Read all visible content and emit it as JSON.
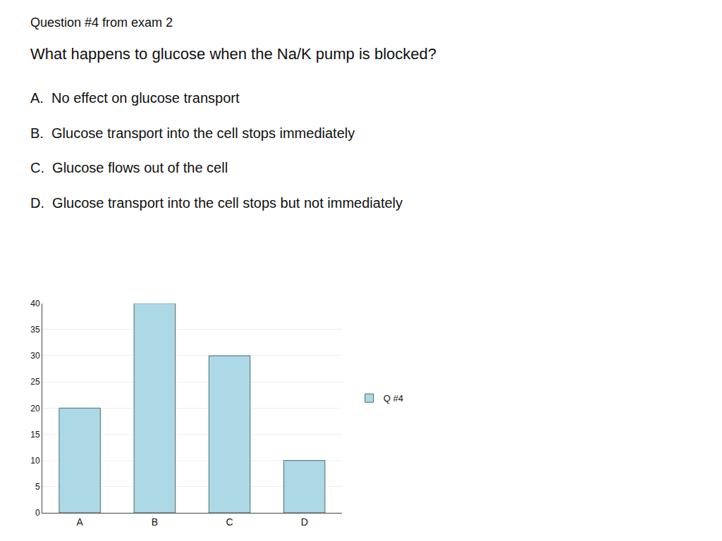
{
  "chart_data": {
    "type": "bar",
    "title": "Question #4 from exam 2",
    "subtitle": "What happens to glucose when the Na/K pump is blocked?",
    "annotations": [
      "A.  No effect on glucose transport",
      "B.  Glucose transport into the cell stops immediately",
      "C.  Glucose flows out of the cell",
      "D.  Glucose transport into the cell stops but not immediately"
    ],
    "categories": [
      "A",
      "B",
      "C",
      "D"
    ],
    "series": [
      {
        "name": "Q #4",
        "color": "#ADD8E6",
        "values": [
          20,
          40,
          30,
          10
        ]
      }
    ],
    "ylim": [
      0,
      40
    ],
    "yticks": [
      0,
      5,
      10,
      15,
      20,
      25,
      30,
      35,
      40
    ],
    "grid": true,
    "legend": "right"
  }
}
